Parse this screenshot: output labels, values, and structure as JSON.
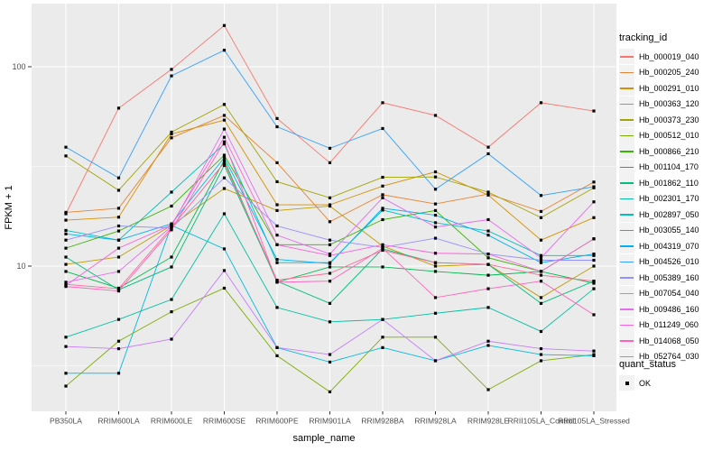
{
  "figure": {
    "panel_bg": "#EBEBEB",
    "grid_color": "#FFFFFF",
    "tick_color": "#333333",
    "tick_label_color": "#4D4D4D",
    "point_color": "#000000"
  },
  "chart_data": {
    "type": "line",
    "title": "",
    "xlabel": "sample_name",
    "ylabel": "FPKM + 1",
    "y_scale": "log10",
    "ylim": [
      1.9,
      207
    ],
    "yticks": [
      100,
      10
    ],
    "grid": true,
    "legend_position": "right",
    "legend_title": "tracking_id",
    "point_legend": {
      "title": "quant_status",
      "label": "OK",
      "shape": "filled-square"
    },
    "x": [
      "PB350LA",
      "RRIM600LA",
      "RRIM600LE",
      "RRIM600SE",
      "RRIM600PE",
      "RRIM901LA",
      "RRIM928BA",
      "RRIM928LA",
      "RRIM928LE",
      "RRII105LA_Control",
      "RRII105LA_Stressed"
    ],
    "series": [
      {
        "name": "Hb_000019_040",
        "color": "#F8766D",
        "values": [
          18.3,
          62,
          97,
          161,
          55,
          33,
          66,
          57,
          39.5,
          66,
          60
        ]
      },
      {
        "name": "Hb_000205_240",
        "color": "#EA8331",
        "values": [
          18.6,
          19.5,
          44,
          57,
          33,
          16.7,
          22.8,
          20.5,
          23,
          18.8,
          26.4
        ]
      },
      {
        "name": "Hb_000291_010",
        "color": "#D89000",
        "values": [
          17,
          17.6,
          46,
          54,
          20.3,
          20.3,
          25.2,
          29.7,
          22.7,
          13.5,
          17.5
        ]
      },
      {
        "name": "Hb_000363_120",
        "color": "#C09B00",
        "values": [
          10.2,
          11.1,
          16,
          24.5,
          19,
          20,
          12.6,
          10,
          10.2,
          6.95,
          10
        ]
      },
      {
        "name": "Hb_000373_230",
        "color": "#A3A500",
        "values": [
          35.7,
          24,
          47,
          64.7,
          26.5,
          22,
          27.9,
          28,
          23.5,
          17.5,
          24.7
        ]
      },
      {
        "name": "Hb_000512_010",
        "color": "#7CAE00",
        "values": [
          2.5,
          4.2,
          5.9,
          7.75,
          3.55,
          2.34,
          4.4,
          4.4,
          2.4,
          3.35,
          3.6
        ]
      },
      {
        "name": "Hb_000866_210",
        "color": "#39B600",
        "values": [
          12.3,
          15,
          20,
          36,
          12.8,
          12.8,
          17.1,
          19,
          11,
          9.4,
          13.7
        ]
      },
      {
        "name": "Hb_001104_170",
        "color": "#00BB4E",
        "values": [
          9.4,
          7.75,
          11.1,
          34,
          8.3,
          9.9,
          9.9,
          9.4,
          9.0,
          9.4,
          8.2
        ]
      },
      {
        "name": "Hb_001862_110",
        "color": "#00BF7D",
        "values": [
          11.1,
          7.6,
          9.9,
          32,
          8.4,
          6.5,
          12.2,
          10.4,
          10.2,
          6.5,
          8.4
        ]
      },
      {
        "name": "Hb_002301_170",
        "color": "#00C1A3",
        "values": [
          4.4,
          5.4,
          6.8,
          18.3,
          6.2,
          5.25,
          5.4,
          5.8,
          6.2,
          4.7,
          7.7
        ]
      },
      {
        "name": "Hb_002897_050",
        "color": "#00BFC4",
        "values": [
          15.1,
          13.5,
          23.5,
          41,
          10.4,
          10.4,
          19.1,
          16.5,
          15,
          11.3,
          11.3
        ]
      },
      {
        "name": "Hb_003055_140",
        "color": "#00BAE0",
        "values": [
          2.9,
          2.9,
          16,
          12.2,
          3.9,
          3.3,
          3.9,
          3.35,
          4.0,
          3.6,
          3.55
        ]
      },
      {
        "name": "Hb_004319_070",
        "color": "#00B0F6",
        "values": [
          14.5,
          13.5,
          16.3,
          35,
          10.8,
          10.3,
          19.5,
          18,
          14.3,
          10.4,
          11.5
        ]
      },
      {
        "name": "Hb_004526_010",
        "color": "#35A2FF",
        "values": [
          39.5,
          27.7,
          90,
          121,
          50,
          39,
          49,
          24.3,
          36.6,
          22.6,
          25
        ]
      },
      {
        "name": "Hb_005389_160",
        "color": "#9590FF",
        "values": [
          13.5,
          15.9,
          15.5,
          27.7,
          15.9,
          13.5,
          12.4,
          13.8,
          11.5,
          10.7,
          10.7
        ]
      },
      {
        "name": "Hb_007054_040",
        "color": "#C77CFF",
        "values": [
          3.95,
          3.85,
          4.3,
          9.5,
          3.9,
          3.6,
          5.4,
          3.35,
          4.2,
          3.85,
          3.75
        ]
      },
      {
        "name": "Hb_009486_160",
        "color": "#E76BF3",
        "values": [
          8.3,
          9.4,
          15.8,
          48.7,
          14.3,
          11.5,
          22,
          15.7,
          17.1,
          11,
          21
        ]
      },
      {
        "name": "Hb_011249_060",
        "color": "#FA62DB",
        "values": [
          8.0,
          12.3,
          16.1,
          44.3,
          12.8,
          11.3,
          12.8,
          11.6,
          11.5,
          9.4,
          13.7
        ]
      },
      {
        "name": "Hb_014068_050",
        "color": "#FF62BC",
        "values": [
          7.9,
          7.5,
          15.2,
          42,
          8.3,
          8.4,
          12.3,
          6.95,
          7.7,
          8.4,
          5.7
        ]
      },
      {
        "name": "Hb_052764_030",
        "color": "#FF6A98",
        "values": [
          8.1,
          7.7,
          15.6,
          33,
          8.5,
          9.2,
          12.0,
          10.4,
          10.2,
          9.0,
          8.4
        ]
      }
    ]
  }
}
